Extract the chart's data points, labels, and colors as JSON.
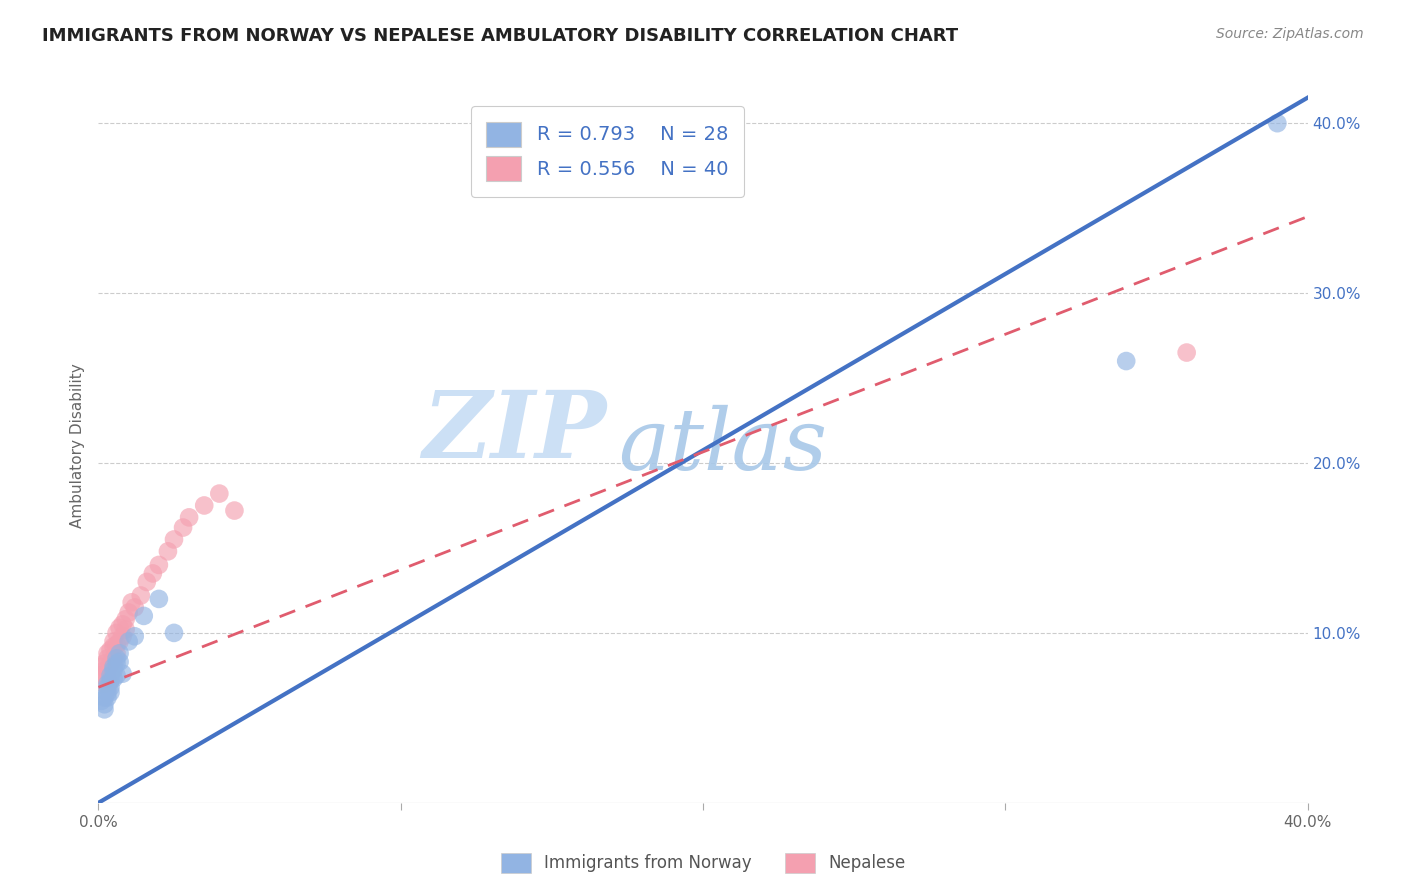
{
  "title": "IMMIGRANTS FROM NORWAY VS NEPALESE AMBULATORY DISABILITY CORRELATION CHART",
  "source": "Source: ZipAtlas.com",
  "xlabel": "",
  "ylabel": "Ambulatory Disability",
  "xmin": 0.0,
  "xmax": 0.4,
  "ymin": 0.0,
  "ymax": 0.42,
  "xticks": [
    0.0,
    0.1,
    0.2,
    0.3,
    0.4
  ],
  "xtick_labels": [
    "0.0%",
    "",
    "",
    "",
    "40.0%"
  ],
  "yticks": [
    0.1,
    0.2,
    0.3,
    0.4
  ],
  "ytick_labels": [
    "10.0%",
    "20.0%",
    "30.0%",
    "40.0%"
  ],
  "legend1_R": "0.793",
  "legend1_N": "28",
  "legend2_R": "0.556",
  "legend2_N": "40",
  "legend_label1": "Immigrants from Norway",
  "legend_label2": "Nepalese",
  "norway_color": "#92b4e3",
  "nepalese_color": "#f4a0b0",
  "norway_line_color": "#4472C4",
  "nepalese_line_color": "#E05C6E",
  "watermark_color": "#cce0f5",
  "background_color": "#ffffff",
  "grid_color": "#cccccc",
  "norway_scatter_x": [
    0.001,
    0.002,
    0.002,
    0.002,
    0.003,
    0.003,
    0.003,
    0.003,
    0.004,
    0.004,
    0.004,
    0.004,
    0.005,
    0.005,
    0.005,
    0.006,
    0.006,
    0.006,
    0.007,
    0.007,
    0.008,
    0.01,
    0.012,
    0.015,
    0.02,
    0.025,
    0.39,
    0.34
  ],
  "norway_scatter_y": [
    0.06,
    0.058,
    0.062,
    0.055,
    0.065,
    0.07,
    0.068,
    0.062,
    0.072,
    0.075,
    0.068,
    0.065,
    0.08,
    0.073,
    0.078,
    0.082,
    0.085,
    0.075,
    0.088,
    0.083,
    0.076,
    0.095,
    0.098,
    0.11,
    0.12,
    0.1,
    0.4,
    0.26
  ],
  "nepalese_scatter_x": [
    0.001,
    0.001,
    0.002,
    0.002,
    0.002,
    0.003,
    0.003,
    0.003,
    0.003,
    0.004,
    0.004,
    0.004,
    0.005,
    0.005,
    0.005,
    0.005,
    0.006,
    0.006,
    0.006,
    0.007,
    0.007,
    0.008,
    0.008,
    0.009,
    0.009,
    0.01,
    0.011,
    0.012,
    0.014,
    0.016,
    0.018,
    0.02,
    0.023,
    0.025,
    0.028,
    0.03,
    0.035,
    0.04,
    0.045,
    0.36
  ],
  "nepalese_scatter_y": [
    0.075,
    0.08,
    0.07,
    0.082,
    0.078,
    0.078,
    0.085,
    0.073,
    0.088,
    0.082,
    0.076,
    0.09,
    0.083,
    0.092,
    0.085,
    0.095,
    0.088,
    0.093,
    0.1,
    0.095,
    0.103,
    0.098,
    0.105,
    0.102,
    0.108,
    0.112,
    0.118,
    0.115,
    0.122,
    0.13,
    0.135,
    0.14,
    0.148,
    0.155,
    0.162,
    0.168,
    0.175,
    0.182,
    0.172,
    0.265
  ],
  "norway_line_x0": 0.0,
  "norway_line_y0": 0.0,
  "norway_line_x1": 0.4,
  "norway_line_y1": 0.415,
  "nepalese_line_x0": 0.0,
  "nepalese_line_y0": 0.068,
  "nepalese_line_x1": 0.4,
  "nepalese_line_y1": 0.345
}
